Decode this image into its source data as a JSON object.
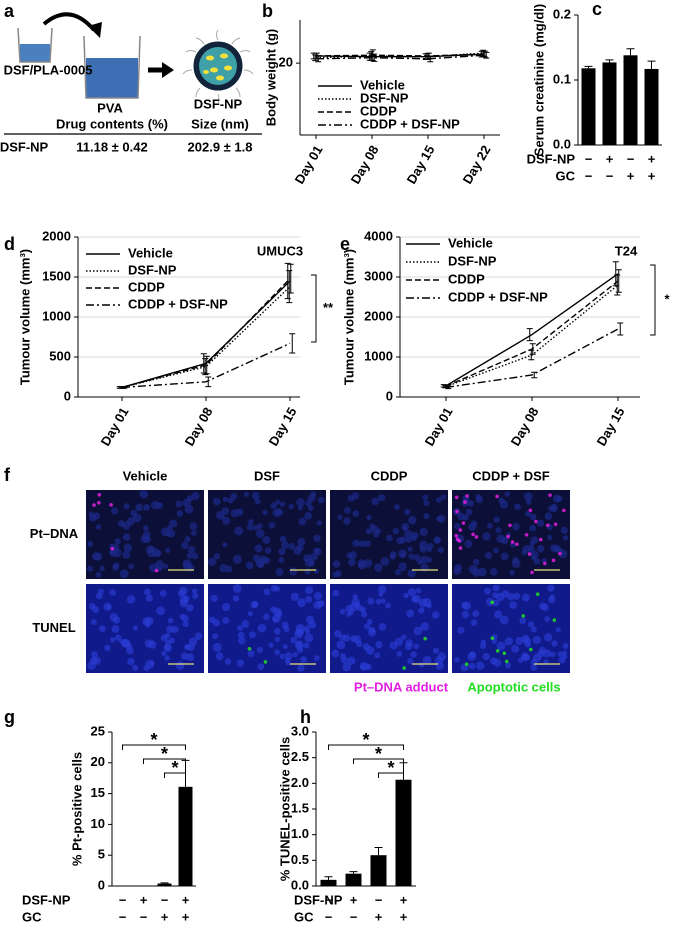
{
  "panel_a": {
    "panel_label": "a",
    "labels": [
      "DSF/PLA-0005",
      "PVA",
      "DSF-NP"
    ],
    "table": {
      "header": [
        "Drug contents (%)",
        "Size (nm)"
      ],
      "rows": [
        [
          "DSF-NP",
          "11.18 ± 0.42",
          "202.9 ± 1.8"
        ]
      ]
    }
  },
  "panel_f": {
    "panel_label": "f",
    "columns": [
      "Vehicle",
      "DSF",
      "CDDP",
      "CDDP + DSF"
    ],
    "rows": [
      "Pt–DNA",
      "TUNEL"
    ],
    "legend": [
      "Pt–DNA adduct",
      "Apoptotic cells"
    ],
    "legend_colors": [
      "#e020e0",
      "#22dd22"
    ]
  },
  "chart_data": [
    {
      "type": "line",
      "panel_label": "b",
      "y_label": "Body weight (g)",
      "categories": [
        "Day 01",
        "Day 08",
        "Day 15",
        "Day 22"
      ],
      "series": [
        {
          "name": "Vehicle",
          "color": "#000000",
          "linestyle": "solid",
          "values": [
            22,
            21.8,
            21.8,
            22.5
          ],
          "errors": [
            0.8,
            1,
            0.8,
            0.8
          ]
        },
        {
          "name": "DSF-NP",
          "color": "#000000",
          "linestyle": "dotted",
          "values": [
            21.5,
            22,
            21.8,
            22.8
          ],
          "errors": [
            0.8,
            1.2,
            0.8,
            0.8
          ]
        },
        {
          "name": "CDDP",
          "color": "#000000",
          "linestyle": "dashed",
          "values": [
            22,
            22.2,
            22,
            22.5
          ],
          "errors": [
            0.8,
            1.5,
            0.8,
            0.8
          ]
        },
        {
          "name": "CDDP + DSF-NP",
          "color": "#000000",
          "linestyle": "dashdot",
          "values": [
            21.2,
            21.5,
            21.2,
            22.2
          ],
          "errors": [
            0.8,
            1,
            0.8,
            0.8
          ]
        }
      ],
      "ylim": [
        0,
        32
      ],
      "yticks": [
        20
      ],
      "grid": false
    },
    {
      "type": "bar",
      "panel_label": "c",
      "y_label": "Serum creatinine (mg/dl)",
      "values": [
        0.118,
        0.127,
        0.138,
        0.117
      ],
      "errors": [
        0.003,
        0.004,
        0.01,
        0.012
      ],
      "color": "#000000",
      "ylim": [
        0,
        0.2
      ],
      "yticks": [
        {
          "value": 0,
          "label": "0.0"
        },
        0.1,
        0.2
      ],
      "conditions": [
        {
          "name": "DSF-NP",
          "signs": [
            "−",
            "+",
            "−",
            "+"
          ]
        },
        {
          "name": "GC",
          "signs": [
            "−",
            "−",
            "+",
            "+"
          ]
        }
      ]
    },
    {
      "type": "line",
      "panel_label": "d",
      "y_label": "Tumour volume (mm³)",
      "annotation": "UMUC3",
      "categories": [
        "Day 01",
        "Day 08",
        "Day 15"
      ],
      "series": [
        {
          "name": "Vehicle",
          "color": "#000000",
          "linestyle": "solid",
          "values": [
            120,
            420,
            1450
          ],
          "errors": [
            10,
            120,
            220
          ]
        },
        {
          "name": "DSF-NP",
          "color": "#000000",
          "linestyle": "dotted",
          "values": [
            120,
            380,
            1380
          ],
          "errors": [
            10,
            100,
            200
          ]
        },
        {
          "name": "CDDP",
          "color": "#000000",
          "linestyle": "dashed",
          "values": [
            120,
            400,
            1480
          ],
          "errors": [
            10,
            110,
            180
          ]
        },
        {
          "name": "CDDP + DSF-NP",
          "color": "#000000",
          "linestyle": "dashdot",
          "values": [
            120,
            190,
            670
          ],
          "errors": [
            10,
            60,
            120
          ]
        }
      ],
      "significance": [
        "**"
      ],
      "ylim": [
        0,
        2000
      ],
      "yticks": [
        0,
        500,
        1000,
        1500,
        2000
      ],
      "grid": true
    },
    {
      "type": "line",
      "panel_label": "e",
      "y_label": "Tumour volume (mm³)",
      "annotation": "T24",
      "categories": [
        "Day 01",
        "Day 08",
        "Day 15"
      ],
      "series": [
        {
          "name": "Vehicle",
          "color": "#000000",
          "linestyle": "solid",
          "values": [
            280,
            1560,
            3080
          ],
          "errors": [
            30,
            150,
            300
          ]
        },
        {
          "name": "DSF-NP",
          "color": "#000000",
          "linestyle": "dotted",
          "values": [
            260,
            1050,
            2800
          ],
          "errors": [
            30,
            120,
            250
          ]
        },
        {
          "name": "CDDP",
          "color": "#000000",
          "linestyle": "dashed",
          "values": [
            270,
            1200,
            2900
          ],
          "errors": [
            30,
            130,
            280
          ]
        },
        {
          "name": "CDDP + DSF-NP",
          "color": "#000000",
          "linestyle": "dashdot",
          "values": [
            240,
            550,
            1700
          ],
          "errors": [
            30,
            70,
            150
          ]
        }
      ],
      "significance": [
        "*"
      ],
      "ylim": [
        0,
        4000
      ],
      "yticks": [
        0,
        1000,
        2000,
        3000,
        4000
      ],
      "grid": true
    },
    {
      "type": "bar",
      "panel_label": "g",
      "y_label": "% Pt-positive cells",
      "values": [
        0,
        0,
        0.4,
        16.1
      ],
      "errors": [
        0,
        0,
        0.1,
        4.3
      ],
      "color": "#000000",
      "ylim": [
        0,
        25
      ],
      "yticks": [
        0,
        5,
        10,
        15,
        20,
        25
      ],
      "significance": [
        "*",
        "*",
        "*"
      ],
      "conditions": [
        {
          "name": "DSF-NP",
          "signs": [
            "−",
            "+",
            "−",
            "+"
          ]
        },
        {
          "name": "GC",
          "signs": [
            "−",
            "−",
            "+",
            "+"
          ]
        }
      ]
    },
    {
      "type": "bar",
      "panel_label": "h",
      "y_label": "% TUNEL-positive cells",
      "values": [
        0.12,
        0.24,
        0.6,
        2.07
      ],
      "errors": [
        0.06,
        0.04,
        0.15,
        0.33
      ],
      "color": "#000000",
      "ylim": [
        0,
        3
      ],
      "yticks": [
        {
          "value": 0,
          "label": "0.0"
        },
        0.5,
        {
          "value": 1,
          "label": "1.0"
        },
        1.5,
        {
          "value": 2,
          "label": "2.0"
        },
        2.5,
        {
          "value": 3,
          "label": "3.0"
        }
      ],
      "significance": [
        "*",
        "*",
        "*"
      ],
      "conditions": [
        {
          "name": "DSF-NP",
          "signs": [
            "−",
            "+",
            "−",
            "+"
          ]
        },
        {
          "name": "GC",
          "signs": [
            "−",
            "−",
            "+",
            "+"
          ]
        }
      ]
    }
  ]
}
